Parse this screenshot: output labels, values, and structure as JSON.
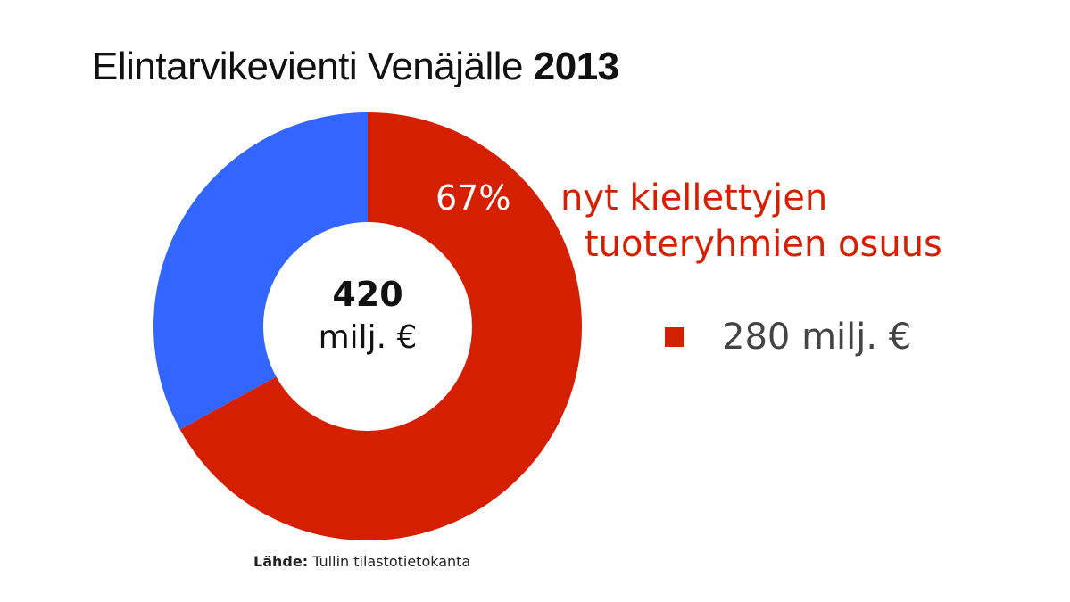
{
  "title": {
    "text": "Elintarvikevienti Venäjälle",
    "year": "2013"
  },
  "chart_data": {
    "type": "pie",
    "title": "Elintarvikevienti Venäjälle 2013",
    "total_value": "420",
    "total_unit": "milj. €",
    "slices": [
      {
        "value": 67,
        "color": "#d41f00",
        "label": "67%"
      },
      {
        "value": 33,
        "color": "#3366ff"
      }
    ],
    "callout": {
      "line1": "nyt kiellettyjen",
      "line2": "tuoteryhmien osuus"
    },
    "legend": {
      "label": "280 milj. €",
      "color": "#d41f00"
    }
  },
  "source": {
    "label": "Lähde:",
    "text": "Tullin tilastotietokanta"
  }
}
